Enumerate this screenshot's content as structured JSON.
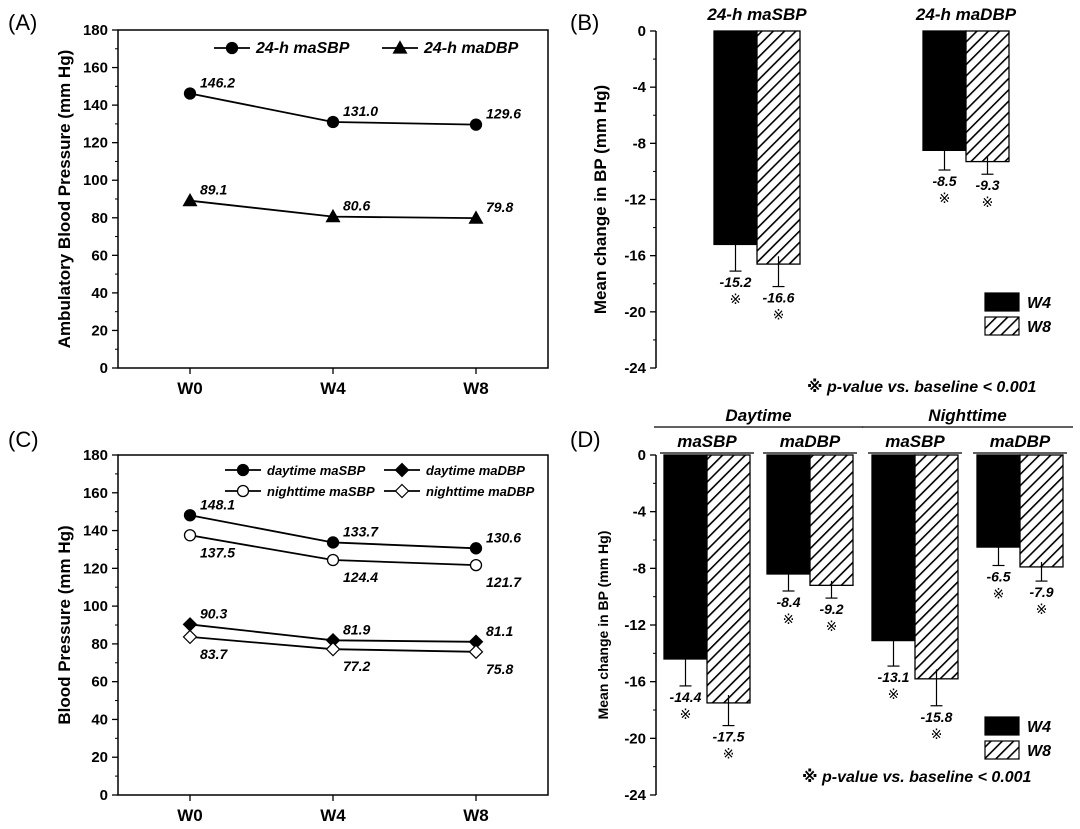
{
  "chart_data": [
    {
      "panel": "(A)",
      "type": "line",
      "ylabel": "Ambulatory Blood Pressure (mm Hg)",
      "categories": [
        "W0",
        "W4",
        "W8"
      ],
      "ylim": [
        0,
        180
      ],
      "yticks": [
        0,
        20,
        40,
        60,
        80,
        100,
        120,
        140,
        160,
        180
      ],
      "legend_position": "top-right",
      "series": [
        {
          "name": "24-h maSBP",
          "marker": "filled-circle",
          "values": [
            146.2,
            131.0,
            129.6
          ],
          "labels": [
            "146.2",
            "131.0",
            "129.6"
          ]
        },
        {
          "name": "24-h maDBP",
          "marker": "filled-triangle",
          "values": [
            89.1,
            80.6,
            79.8
          ],
          "labels": [
            "89.1",
            "80.6",
            "79.8"
          ]
        }
      ]
    },
    {
      "panel": "(B)",
      "type": "bar",
      "ylabel": "Mean change in BP (mm Hg)",
      "ylim": [
        -24,
        0
      ],
      "yticks": [
        0,
        -4,
        -8,
        -12,
        -16,
        -20,
        -24
      ],
      "categories": [
        "24-h maSBP",
        "24-h maDBP"
      ],
      "legend_position": "bottom-right",
      "series": [
        {
          "name": "W4",
          "pattern": "solid-black",
          "values": [
            -15.2,
            -8.5
          ],
          "errors": [
            1.9,
            1.4
          ],
          "labels": [
            "-15.2",
            "-8.5"
          ]
        },
        {
          "name": "W8",
          "pattern": "hatched",
          "values": [
            -16.6,
            -9.3
          ],
          "errors": [
            1.6,
            0.9
          ],
          "labels": [
            "-16.6",
            "-9.3"
          ]
        }
      ],
      "significance_mark": "※",
      "note": "※ p-value vs. baseline < 0.001"
    },
    {
      "panel": "(C)",
      "type": "line",
      "ylabel": "Blood Pressure (mm Hg)",
      "categories": [
        "W0",
        "W4",
        "W8"
      ],
      "ylim": [
        0,
        180
      ],
      "yticks": [
        0,
        20,
        40,
        60,
        80,
        100,
        120,
        140,
        160,
        180
      ],
      "legend_position": "top-right",
      "series": [
        {
          "name": "daytime maSBP",
          "marker": "filled-circle",
          "values": [
            148.1,
            133.7,
            130.6
          ],
          "labels": [
            "148.1",
            "133.7",
            "130.6"
          ]
        },
        {
          "name": "nighttime maSBP",
          "marker": "open-circle",
          "values": [
            137.5,
            124.4,
            121.7
          ],
          "labels": [
            "137.5",
            "124.4",
            "121.7"
          ]
        },
        {
          "name": "daytime maDBP",
          "marker": "filled-diamond",
          "values": [
            90.3,
            81.9,
            81.1
          ],
          "labels": [
            "90.3",
            "81.9",
            "81.1"
          ]
        },
        {
          "name": "nighttime maDBP",
          "marker": "open-diamond",
          "values": [
            83.7,
            77.2,
            75.8
          ],
          "labels": [
            "83.7",
            "77.2",
            "75.8"
          ]
        }
      ]
    },
    {
      "panel": "(D)",
      "type": "bar",
      "ylabel": "Mean change in BP (mm Hg)",
      "ylim": [
        -24,
        0
      ],
      "yticks": [
        0,
        -4,
        -8,
        -12,
        -16,
        -20,
        -24
      ],
      "groups": [
        {
          "name": "Daytime",
          "categories": [
            "maSBP",
            "maDBP"
          ]
        },
        {
          "name": "Nighttime",
          "categories": [
            "maSBP",
            "maDBP"
          ]
        }
      ],
      "categories": [
        "maSBP",
        "maDBP",
        "maSBP",
        "maDBP"
      ],
      "legend_position": "bottom-right",
      "series": [
        {
          "name": "W4",
          "pattern": "solid-black",
          "values": [
            -14.4,
            -8.4,
            -13.1,
            -6.5
          ],
          "errors": [
            1.9,
            1.2,
            1.8,
            1.3
          ],
          "labels": [
            "-14.4",
            "-8.4",
            "-13.1",
            "-6.5"
          ]
        },
        {
          "name": "W8",
          "pattern": "hatched",
          "values": [
            -17.5,
            -9.2,
            -15.8,
            -7.9
          ],
          "errors": [
            1.6,
            0.9,
            1.9,
            1.0
          ],
          "labels": [
            "-17.5",
            "-9.2",
            "-15.8",
            "-7.9"
          ]
        }
      ],
      "significance_mark": "※",
      "note": "※ p-value vs. baseline < 0.001"
    }
  ]
}
